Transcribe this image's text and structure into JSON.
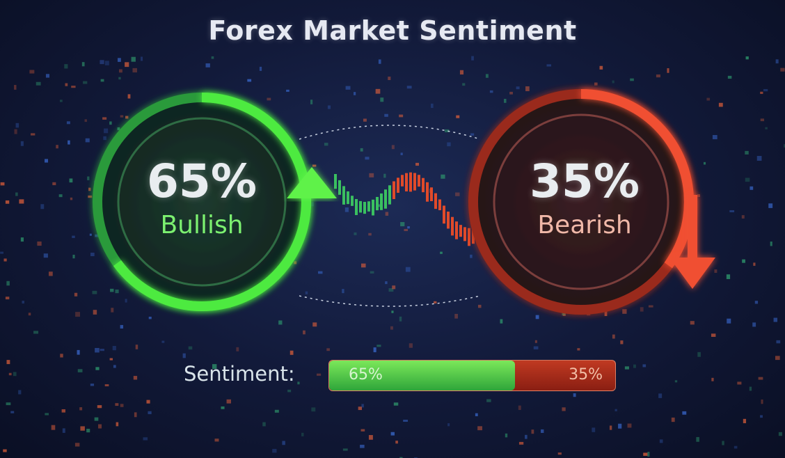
{
  "title": "Forex Market Sentiment",
  "colors": {
    "bullish": "#3fdc3f",
    "bearish": "#e8452a",
    "background": "#121a3a"
  },
  "bullish": {
    "value_label": "65%",
    "label": "Bullish",
    "icon": "arrow-up-icon"
  },
  "bearish": {
    "value_label": "35%",
    "label": "Bearish",
    "icon": "arrow-down-icon"
  },
  "sentiment_bar": {
    "label": "Sentiment:",
    "bullish_label": "65%",
    "bearish_label": "35%"
  },
  "chart_data": {
    "type": "bar",
    "categories": [
      "Bullish",
      "Bearish"
    ],
    "values": [
      65,
      35
    ],
    "title": "Forex Market Sentiment",
    "unit": "%"
  }
}
